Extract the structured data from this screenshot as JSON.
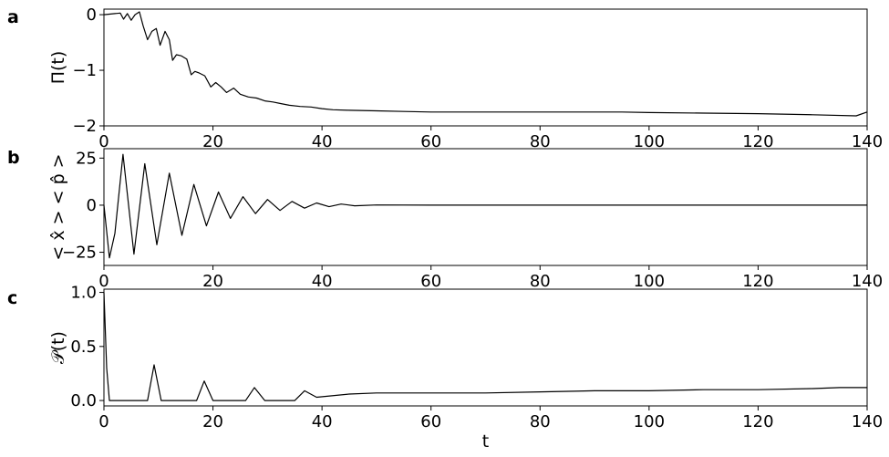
{
  "chart_data": [
    {
      "type": "line",
      "panel_label": "a",
      "ylabel": "Π(t)",
      "xlabel": "",
      "xlim": [
        0,
        140
      ],
      "ylim": [
        -2,
        0.1
      ],
      "xticks": [
        0,
        20,
        40,
        60,
        80,
        100,
        120,
        140
      ],
      "xtick_labels": [
        "0",
        "20",
        "40",
        "60",
        "80",
        "100",
        "120",
        "140"
      ],
      "yticks": [
        0,
        -1,
        -2
      ],
      "ytick_labels": [
        "0",
        "−1",
        "−2"
      ],
      "grid": false,
      "line_color": "#000000",
      "series": [
        {
          "x": [
            0,
            2,
            3,
            3.6,
            4.3,
            5,
            5.7,
            6.5,
            7.2,
            8,
            8.8,
            9.6,
            10.3,
            11.2,
            12,
            12.6,
            13.3,
            14.2,
            15.2,
            16,
            16.7,
            17.5,
            18.5,
            19.6,
            20.5,
            21.5,
            22.5,
            23.8,
            25,
            26.5,
            28,
            29.5,
            31,
            32.5,
            34,
            36,
            38,
            40,
            42,
            45,
            50,
            55,
            60,
            70,
            80,
            90,
            95,
            100,
            110,
            120,
            130,
            138,
            140
          ],
          "y": [
            0,
            0.02,
            0.03,
            -0.08,
            0.02,
            -0.1,
            0.0,
            0.05,
            -0.2,
            -0.45,
            -0.3,
            -0.25,
            -0.55,
            -0.3,
            -0.45,
            -0.82,
            -0.72,
            -0.74,
            -0.8,
            -1.08,
            -1.02,
            -1.05,
            -1.1,
            -1.3,
            -1.22,
            -1.3,
            -1.4,
            -1.32,
            -1.43,
            -1.48,
            -1.5,
            -1.55,
            -1.57,
            -1.6,
            -1.63,
            -1.65,
            -1.66,
            -1.69,
            -1.71,
            -1.72,
            -1.73,
            -1.74,
            -1.75,
            -1.75,
            -1.75,
            -1.75,
            -1.75,
            -1.76,
            -1.77,
            -1.78,
            -1.8,
            -1.82,
            -1.75
          ]
        }
      ]
    },
    {
      "type": "line",
      "panel_label": "b",
      "ylabel": "< x̂ > < p̂ >",
      "xlabel": "",
      "xlim": [
        0,
        140
      ],
      "ylim": [
        -32,
        30
      ],
      "xticks": [
        0,
        20,
        40,
        60,
        80,
        100,
        120,
        140
      ],
      "xtick_labels": [
        "0",
        "20",
        "40",
        "60",
        "80",
        "100",
        "120",
        "140"
      ],
      "yticks": [
        25,
        0,
        -25
      ],
      "ytick_labels": [
        "25",
        "0",
        "−25"
      ],
      "grid": false,
      "line_color": "#000000",
      "series": [
        {
          "x": [
            0,
            1,
            2,
            3.5,
            5.5,
            7.5,
            9.7,
            12,
            14.3,
            16.5,
            18.8,
            21,
            23.2,
            25.5,
            27.8,
            30,
            32.3,
            34.5,
            36.8,
            39,
            41.3,
            43.5,
            46,
            50,
            60,
            80,
            100,
            120,
            140
          ],
          "y": [
            0,
            -28,
            -15,
            27,
            -26,
            22,
            -21,
            17,
            -16,
            11,
            -11,
            7,
            -7,
            4.5,
            -4.5,
            3,
            -2.8,
            2,
            -1.6,
            1.2,
            -0.8,
            0.6,
            -0.3,
            0.1,
            0,
            0,
            0,
            0,
            0
          ]
        }
      ]
    },
    {
      "type": "line",
      "panel_label": "c",
      "ylabel": "𝒫(t)",
      "xlabel": "t",
      "xlim": [
        0,
        140
      ],
      "ylim": [
        -0.05,
        1.03
      ],
      "xticks": [
        0,
        20,
        40,
        60,
        80,
        100,
        120,
        140
      ],
      "xtick_labels": [
        "0",
        "20",
        "40",
        "60",
        "80",
        "100",
        "120",
        "140"
      ],
      "yticks": [
        0.0,
        0.5,
        1.0
      ],
      "ytick_labels": [
        "0.0",
        "0.5",
        "1.0"
      ],
      "grid": false,
      "line_color": "#000000",
      "series": [
        {
          "x": [
            0,
            0.5,
            1,
            8,
            9.2,
            10.5,
            17,
            18.4,
            20,
            26,
            27.6,
            29.5,
            35,
            36.8,
            39,
            45,
            50,
            60,
            70,
            80,
            90,
            100,
            110,
            120,
            130,
            135,
            140
          ],
          "y": [
            1.0,
            0.3,
            0.0,
            0.0,
            0.33,
            0.0,
            0.0,
            0.18,
            0.0,
            0.0,
            0.12,
            0.0,
            0.0,
            0.09,
            0.03,
            0.06,
            0.07,
            0.07,
            0.07,
            0.08,
            0.09,
            0.09,
            0.1,
            0.1,
            0.11,
            0.12,
            0.12
          ]
        }
      ]
    }
  ]
}
